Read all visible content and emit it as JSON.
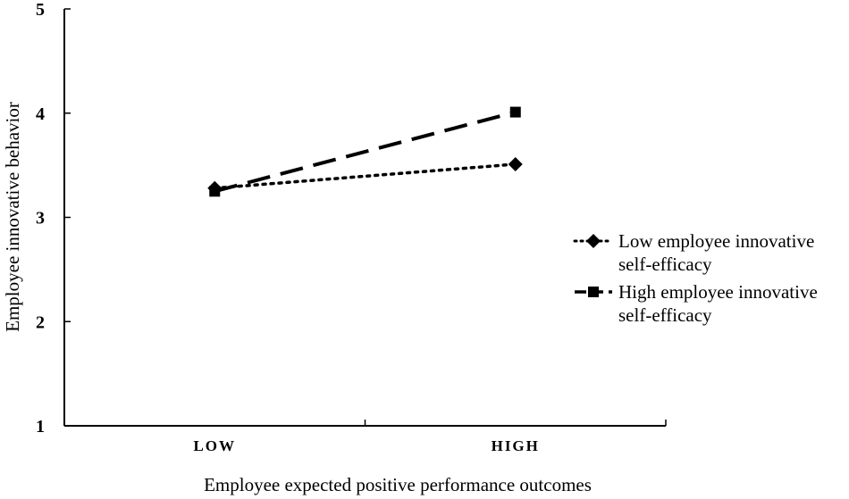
{
  "chart_data": {
    "type": "line",
    "title": "",
    "xlabel": "Employee expected positive performance outcomes",
    "ylabel": "Employee innovative behavior",
    "categories": [
      "LOW",
      "HIGH"
    ],
    "ylim": [
      1,
      5
    ],
    "yticks": [
      "1",
      "2",
      "3",
      "4",
      "5"
    ],
    "grid": false,
    "legend_position": "right",
    "series": [
      {
        "name": "Low employee innovative self-efficacy",
        "name_lines": [
          "Low employee innovative",
          "self-efficacy"
        ],
        "values": [
          3.28,
          3.51
        ],
        "line_style": "dotted",
        "marker": "diamond",
        "color": "#000000"
      },
      {
        "name": "High employee innovative self-efficacy",
        "name_lines": [
          "High employee innovative",
          "self-efficacy"
        ],
        "values": [
          3.25,
          4.01
        ],
        "line_style": "dashed",
        "marker": "square",
        "color": "#000000"
      }
    ]
  }
}
